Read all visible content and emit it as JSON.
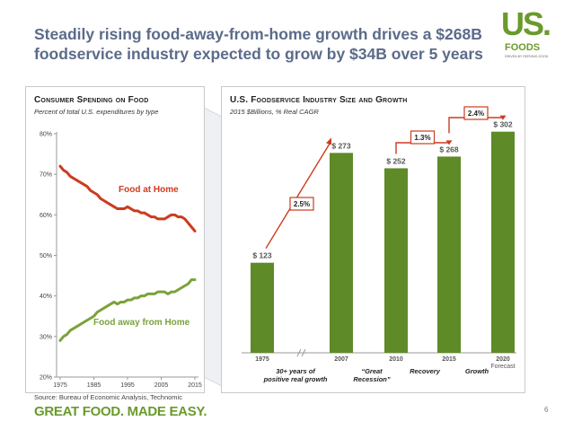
{
  "title": "Steadily rising food-away-from-home growth drives a $268B foodservice industry expected to grow by $34B over 5 years",
  "logo": {
    "us": "US.",
    "foods": "FOODS",
    "tagline": "DRIVEN BY SERVING GOOD"
  },
  "colors": {
    "green": "#5e8a27",
    "red": "#cc3b1f",
    "lineGreen": "#7aa23a",
    "title": "#5b6b8a"
  },
  "footer": {
    "source": "Source:  Bureau of Economic Analysis, Technomic",
    "slogan": "GREAT FOOD. MADE EASY.",
    "page": "6"
  },
  "chart_data": [
    {
      "type": "line",
      "title": "Consumer Spending on Food",
      "subtitle": "Percent of total U.S. expenditures by type",
      "x": [
        1975,
        1976,
        1977,
        1978,
        1979,
        1980,
        1981,
        1982,
        1983,
        1984,
        1985,
        1986,
        1987,
        1988,
        1989,
        1990,
        1991,
        1992,
        1993,
        1994,
        1995,
        1996,
        1997,
        1998,
        1999,
        2000,
        2001,
        2002,
        2003,
        2004,
        2005,
        2006,
        2007,
        2008,
        2009,
        2010,
        2011,
        2012,
        2013,
        2014,
        2015
      ],
      "xticks": [
        "1975",
        "1985",
        "1995",
        "2005",
        "2015"
      ],
      "yticks": [
        "20%",
        "30%",
        "40%",
        "50%",
        "60%",
        "70%",
        "80%"
      ],
      "ylim": [
        20,
        80
      ],
      "series": [
        {
          "name": "Food at Home",
          "values": [
            72,
            71,
            70.5,
            69.5,
            69,
            68.5,
            68,
            67.5,
            67,
            66,
            65.5,
            65,
            64,
            63.5,
            63,
            62.5,
            62,
            61.5,
            61.5,
            61.5,
            62,
            61.5,
            61,
            61,
            60.5,
            60.5,
            60,
            59.5,
            59.5,
            59,
            59,
            59,
            59.5,
            60,
            60,
            59.5,
            59.5,
            59,
            58,
            57,
            56
          ]
        },
        {
          "name": "Food away from Home",
          "values": [
            29,
            30,
            30.5,
            31.5,
            32,
            32.5,
            33,
            33.5,
            34,
            34.5,
            35,
            36,
            36.5,
            37,
            37.5,
            38,
            38.5,
            38,
            38.5,
            38.5,
            39,
            39,
            39.5,
            39.5,
            40,
            40,
            40.5,
            40.5,
            40.5,
            41,
            41,
            41,
            40.5,
            41,
            41,
            41.5,
            42,
            42.5,
            43,
            44,
            44
          ]
        }
      ]
    },
    {
      "type": "bar",
      "title": "U.S. Foodservice Industry Size and Growth",
      "subtitle": "2015 $Billions, % Real CAGR",
      "categories": [
        "1975",
        "2007",
        "2010",
        "2015",
        "2020"
      ],
      "category_note": "Forecast",
      "values": [
        123,
        273,
        252,
        268,
        302
      ],
      "value_labels": [
        "$ 123",
        "$ 273",
        "$ 252",
        "$ 268",
        "$ 302"
      ],
      "ylim": [
        0,
        320
      ],
      "cagr": [
        "2.5%",
        "1.3%",
        "2.4%"
      ],
      "phases": [
        "30+ years of positive real growth",
        "“Great Recession”",
        "Recovery",
        "Growth"
      ]
    }
  ]
}
